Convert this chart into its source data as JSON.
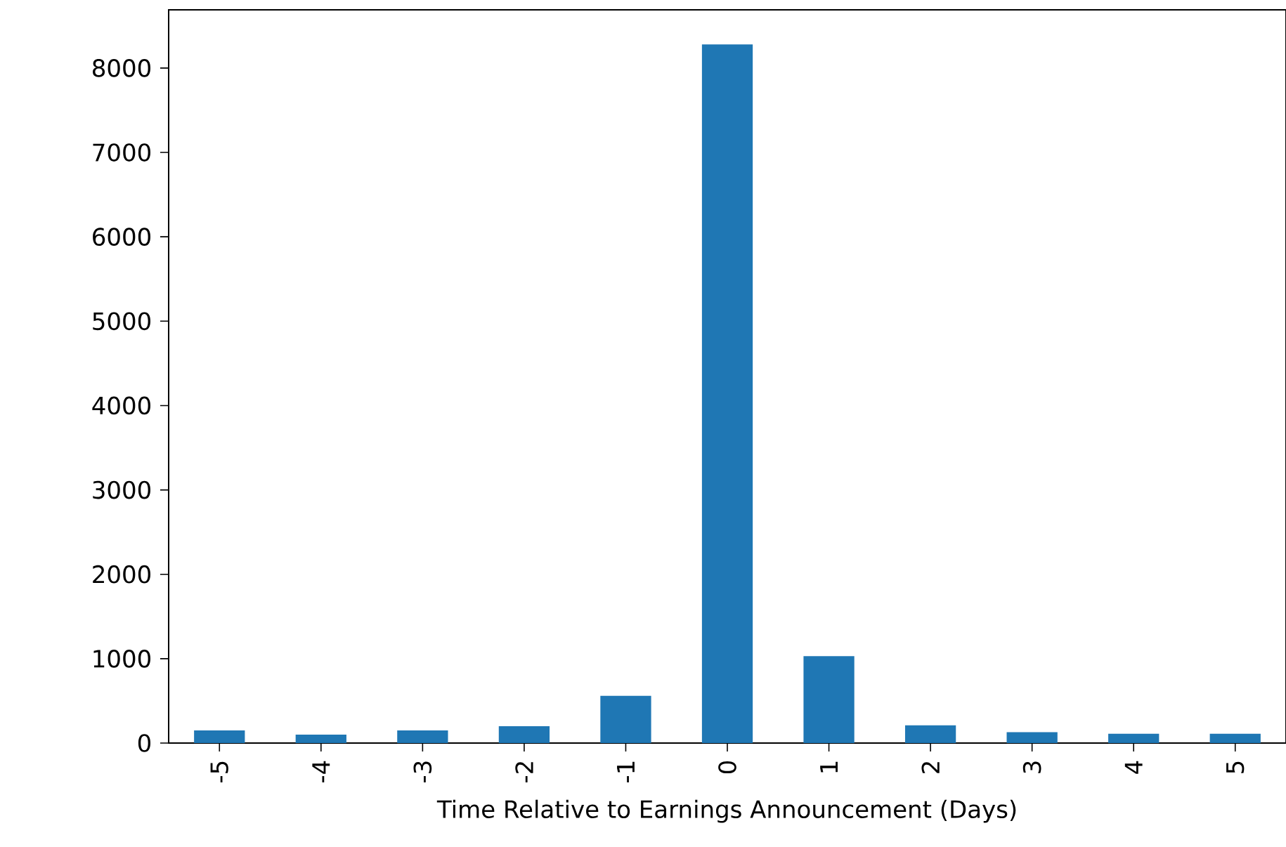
{
  "chart_data": {
    "type": "bar",
    "xlabel": "Time Relative to Earnings Announcement (Days)",
    "categories": [
      "-5",
      "-4",
      "-3",
      "-2",
      "-1",
      "0",
      "1",
      "2",
      "3",
      "4",
      "5"
    ],
    "values": [
      150,
      100,
      150,
      200,
      560,
      8280,
      1030,
      210,
      130,
      110,
      110
    ],
    "color": "#1f77b4",
    "ylim": [
      0,
      8690
    ],
    "yticks": [
      0,
      1000,
      2000,
      3000,
      4000,
      5000,
      6000,
      7000,
      8000
    ]
  }
}
